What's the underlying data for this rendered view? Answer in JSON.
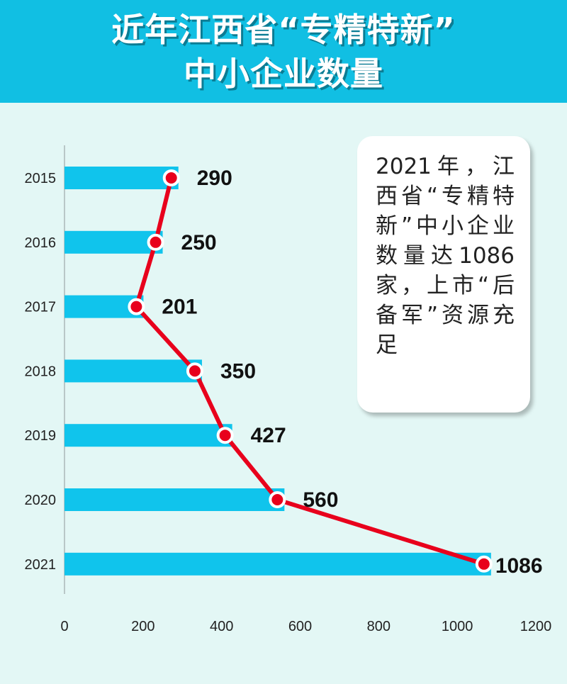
{
  "title": {
    "line1": "近年江西省“专精特新”",
    "line2": "中小企业数量"
  },
  "note": "2021年，江西省“专精特新”中小企业数量达1086家，上市“后备军”资源充足",
  "colors": {
    "header": "#11bfe3",
    "bar": "#10c4ec",
    "line": "#e8001c",
    "background": "#e3f7f5"
  },
  "chart_data": {
    "type": "bar",
    "orientation": "horizontal",
    "categories": [
      "2015",
      "2016",
      "2017",
      "2018",
      "2019",
      "2020",
      "2021"
    ],
    "bar_values": [
      290,
      250,
      201,
      350,
      427,
      560,
      1086
    ],
    "line_values": [
      290,
      250,
      201,
      350,
      427,
      560,
      1086
    ],
    "data_labels": [
      "290",
      "250",
      "201",
      "350",
      "427",
      "560",
      "1086"
    ],
    "xlim": [
      0,
      1200
    ],
    "xticks": [
      0,
      200,
      400,
      600,
      800,
      1000,
      1200
    ],
    "grid": false,
    "legend": "none"
  }
}
